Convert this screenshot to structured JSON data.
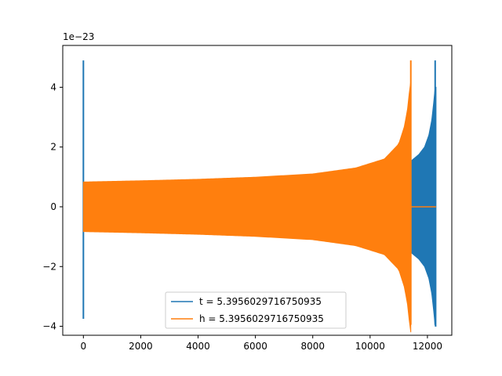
{
  "chart_data": {
    "type": "line",
    "title": "",
    "xlabel": "",
    "ylabel": "",
    "xlim": [
      -720,
      12850
    ],
    "ylim": [
      -4.3,
      5.4
    ],
    "x_ticks": [
      0,
      2000,
      4000,
      6000,
      8000,
      10000,
      12000
    ],
    "x_tick_labels": [
      "0",
      "2000",
      "4000",
      "6000",
      "8000",
      "10000",
      "12000"
    ],
    "y_ticks": [
      -4,
      -2,
      0,
      2,
      4
    ],
    "y_tick_labels": [
      "−4",
      "−2",
      "0",
      "2",
      "4"
    ],
    "y_offset_label": "1e−23",
    "grid": false,
    "legend_position": "lower-center",
    "series": [
      {
        "name": "t = 5.3956029716750935",
        "color": "#1f77b4",
        "spike_x": 0,
        "spike_range": [
          -3.75,
          4.9
        ],
        "burst_start": 11450,
        "burst_end": 12300,
        "burst_envelope": [
          {
            "x": 11450,
            "amp": 1.55
          },
          {
            "x": 11700,
            "amp": 1.75
          },
          {
            "x": 11900,
            "amp": 2.0
          },
          {
            "x": 12050,
            "amp": 2.4
          },
          {
            "x": 12150,
            "amp": 2.9
          },
          {
            "x": 12220,
            "amp": 3.5
          },
          {
            "x": 12270,
            "amp": 4.0
          }
        ],
        "peak_x": 12270,
        "peak_range": [
          -3.95,
          4.9
        ],
        "flat_after_x": 11450
      },
      {
        "name": "h = 5.3956029716750935",
        "color": "#ff7f0e",
        "start_x": 0,
        "end_x": 11420,
        "envelope": [
          {
            "x": 0,
            "amp": 0.83
          },
          {
            "x": 2000,
            "amp": 0.87
          },
          {
            "x": 4000,
            "amp": 0.92
          },
          {
            "x": 6000,
            "amp": 0.99
          },
          {
            "x": 8000,
            "amp": 1.1
          },
          {
            "x": 9500,
            "amp": 1.3
          },
          {
            "x": 10500,
            "amp": 1.6
          },
          {
            "x": 11000,
            "amp": 2.1
          },
          {
            "x": 11200,
            "amp": 2.7
          },
          {
            "x": 11330,
            "amp": 3.4
          },
          {
            "x": 11400,
            "amp": 4.2
          }
        ],
        "peak_x": 11420,
        "peak_range": [
          -3.95,
          4.9
        ],
        "flat_line_range": [
          11420,
          12300
        ]
      }
    ]
  }
}
